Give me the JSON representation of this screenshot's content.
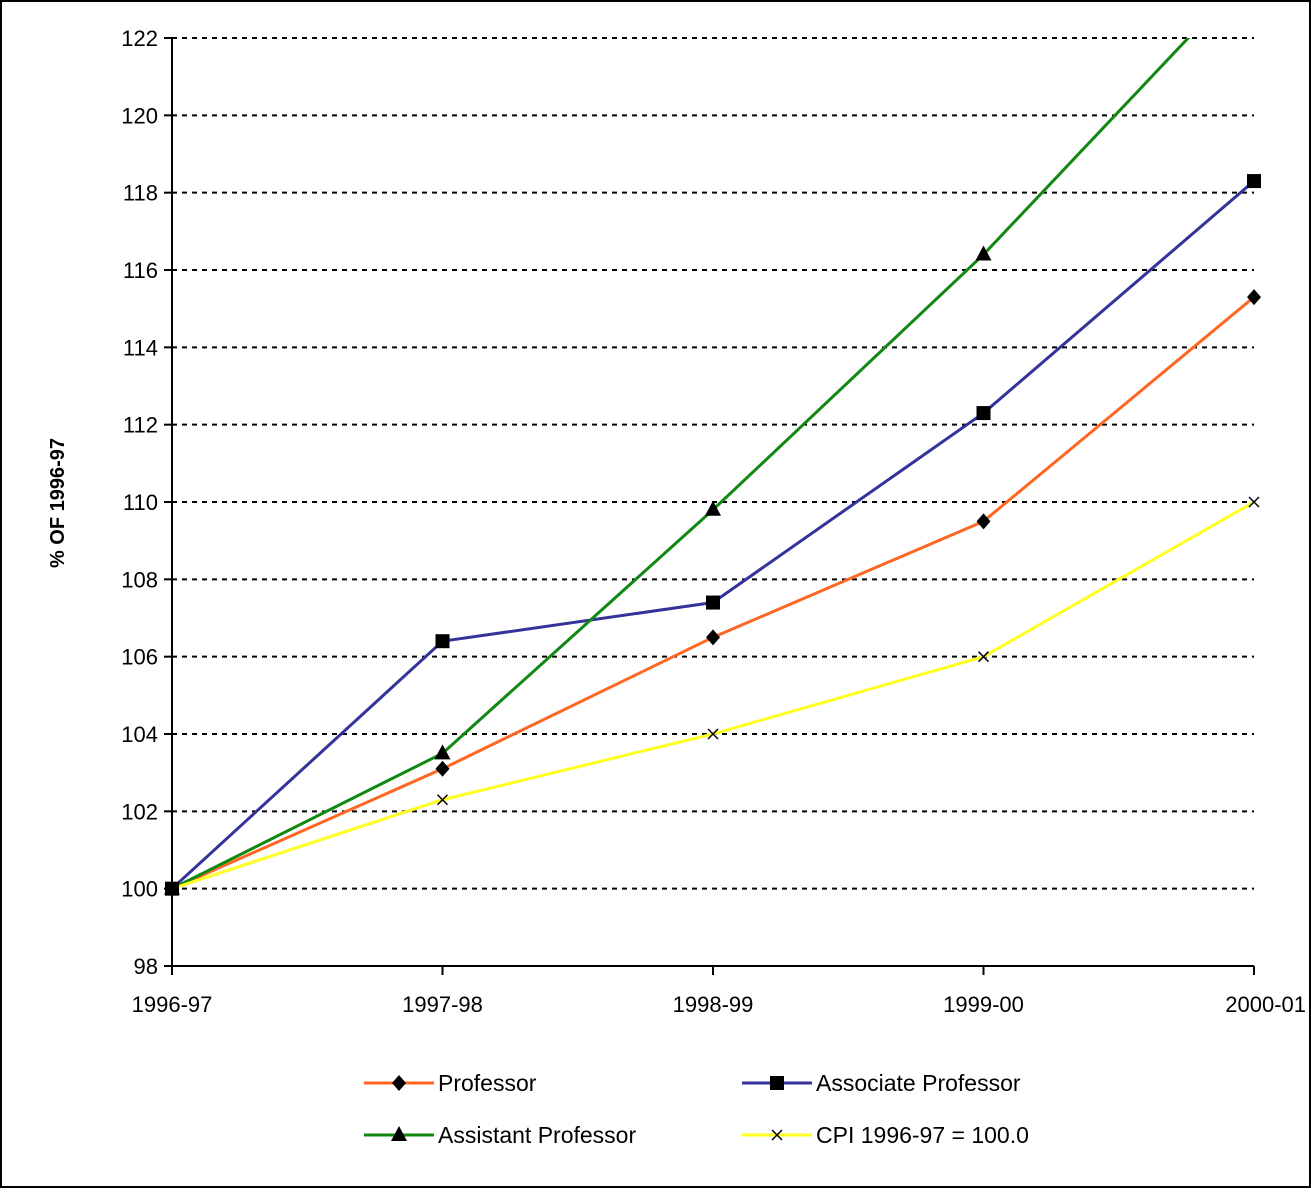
{
  "chart_data": {
    "type": "line",
    "title": "",
    "xlabel": "",
    "ylabel": "% OF 1996-97",
    "categories": [
      "1996-97",
      "1997-98",
      "1998-99",
      "1999-00",
      "2000-01"
    ],
    "ylim": [
      98,
      122
    ],
    "ytick_step": 2,
    "y_ticks": [
      "98",
      "100",
      "102",
      "104",
      "106",
      "108",
      "110",
      "112",
      "114",
      "116",
      "118",
      "120",
      "122"
    ],
    "grid": "horizontal-dashed",
    "legend_position": "bottom",
    "series": [
      {
        "name": "Professor",
        "values": [
          100.0,
          103.1,
          106.5,
          109.5,
          115.3
        ],
        "color": "#ff6622",
        "marker": "diamond"
      },
      {
        "name": "Associate Professor",
        "values": [
          100.0,
          106.4,
          107.4,
          112.3,
          118.3
        ],
        "color": "#333399",
        "marker": "square"
      },
      {
        "name": "Assistant Professor",
        "values": [
          100.0,
          103.5,
          109.8,
          116.4,
          123.8
        ],
        "color": "#118811",
        "marker": "triangle"
      },
      {
        "name": "CPI 1996-97 = 100.0",
        "values": [
          100.0,
          102.3,
          104.0,
          106.0,
          110.0
        ],
        "color": "#ffff22",
        "marker": "x"
      }
    ]
  }
}
